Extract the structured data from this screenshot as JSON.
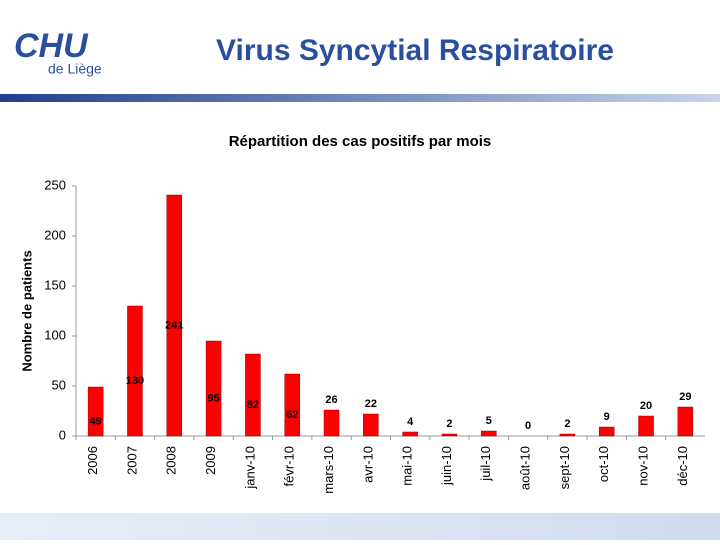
{
  "header": {
    "logo": "CHU",
    "logo_sub": "de Liège",
    "title": "Virus Syncytial Respiratoire"
  },
  "chart_data": {
    "type": "bar",
    "title": "Répartition des cas positifs par mois",
    "y_label": "Nombre de patients",
    "categories": [
      "2006",
      "2007",
      "2008",
      "2009",
      "janv-10",
      "févr-10",
      "mars-10",
      "avr-10",
      "mai-10",
      "juin-10",
      "juil-10",
      "août-10",
      "sept-10",
      "oct-10",
      "nov-10",
      "déc-10"
    ],
    "values": [
      49,
      130,
      241,
      95,
      82,
      62,
      26,
      22,
      4,
      2,
      5,
      0,
      2,
      9,
      20,
      29
    ],
    "color": "#ff0000",
    "ylim": [
      0,
      250
    ],
    "yticks": [
      0,
      50,
      100,
      150,
      200,
      250
    ]
  }
}
